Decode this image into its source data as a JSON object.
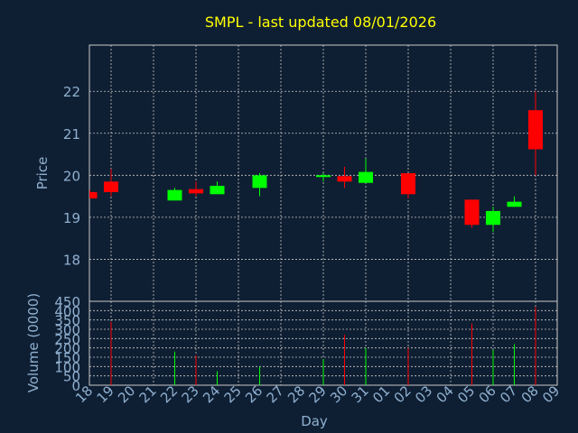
{
  "chart_data": {
    "type": "candlestick",
    "title": "SMPL - last updated 08/01/2026",
    "xlabel": "Day",
    "price_panel": {
      "ylabel": "Price",
      "ylim": [
        17,
        23.1
      ],
      "yticks": [
        "18",
        "19",
        "20",
        "21",
        "22"
      ],
      "grid": true
    },
    "volume_panel": {
      "ylabel": "Volume (0000)",
      "ylim": [
        0,
        450
      ],
      "yticks": [
        "0",
        "50",
        "100",
        "150",
        "200",
        "250",
        "300",
        "350",
        "400",
        "450"
      ],
      "grid": true
    },
    "x_tick_labels": [
      "18",
      "19",
      "20",
      "21",
      "22",
      "23",
      "24",
      "25",
      "26",
      "27",
      "28",
      "29",
      "30",
      "31",
      "01",
      "02",
      "03",
      "04",
      "05",
      "06",
      "07",
      "08",
      "09"
    ],
    "candles": [
      {
        "day": "18",
        "open": 19.6,
        "high": 19.65,
        "low": 19.45,
        "close": 19.45,
        "volume": 0
      },
      {
        "day": "19",
        "open": 19.85,
        "high": 20.15,
        "low": 19.5,
        "close": 19.6,
        "volume": 340
      },
      {
        "day": "22",
        "open": 19.4,
        "high": 19.7,
        "low": 19.4,
        "close": 19.65,
        "volume": 180
      },
      {
        "day": "23",
        "open": 19.67,
        "high": 19.85,
        "low": 19.5,
        "close": 19.57,
        "volume": 160
      },
      {
        "day": "24",
        "open": 19.55,
        "high": 19.85,
        "low": 19.55,
        "close": 19.75,
        "volume": 75
      },
      {
        "day": "26",
        "open": 19.7,
        "high": 20.05,
        "low": 19.5,
        "close": 20.0,
        "volume": 100
      },
      {
        "day": "29",
        "open": 19.94,
        "high": 20.05,
        "low": 19.85,
        "close": 19.98,
        "volume": 140
      },
      {
        "day": "30",
        "open": 19.98,
        "high": 20.2,
        "low": 19.7,
        "close": 19.85,
        "volume": 270
      },
      {
        "day": "31",
        "open": 19.82,
        "high": 20.4,
        "low": 19.82,
        "close": 20.08,
        "volume": 200
      },
      {
        "day": "02",
        "open": 20.05,
        "high": 20.05,
        "low": 19.45,
        "close": 19.55,
        "volume": 200
      },
      {
        "day": "05",
        "open": 19.42,
        "high": 19.42,
        "low": 18.75,
        "close": 18.82,
        "volume": 330
      },
      {
        "day": "06",
        "open": 18.82,
        "high": 19.25,
        "low": 18.65,
        "close": 19.15,
        "volume": 190
      },
      {
        "day": "07",
        "open": 19.25,
        "high": 19.5,
        "low": 19.25,
        "close": 19.37,
        "volume": 220
      },
      {
        "day": "08",
        "open": 21.55,
        "high": 22.0,
        "low": 20.0,
        "close": 20.62,
        "volume": 420
      }
    ],
    "colors": {
      "background": "#0f1f33",
      "grid": "#c8c8c8",
      "title": "#ffff00",
      "axis_text": "#8fb0d0",
      "up": "#00ff00",
      "down": "#ff0000"
    }
  }
}
